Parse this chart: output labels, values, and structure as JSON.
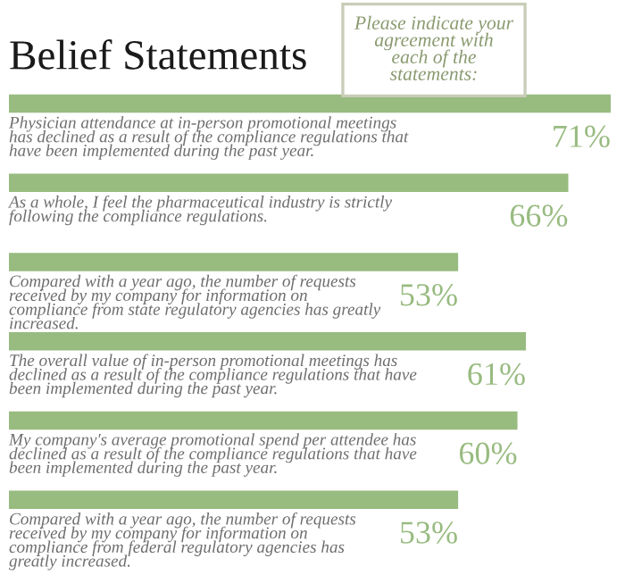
{
  "chart_data": {
    "type": "bar",
    "orientation": "horizontal",
    "title": "Belief Statements",
    "subtitle": "Please indicate your agreement with each of the statements:",
    "categories": [
      "Physician attendance at in-person promotional meetings has declined as a result of the compliance regulations that have been implemented during the past year.",
      "As a whole, I feel the pharmaceutical industry is strictly following the compliance regulations.",
      "Compared with a year ago, the number of requests received by my company for information on compliance from state regulatory agencies has greatly increased.",
      "The overall value of in-person promotional meetings has declined as a result of the compliance regulations that have been implemented during the past year.",
      "My company's average promotional spend per attendee has declined as a result of the compliance regulations that have been implemented during the past year.",
      "Compared with a year ago, the number of requests received by my company for information on compliance from federal regulatory agencies has greatly increased."
    ],
    "values": [
      71,
      66,
      53,
      61,
      60,
      53
    ],
    "value_labels": [
      "71%",
      "66%",
      "53%",
      "61%",
      "60%",
      "53%"
    ],
    "color": "#98bb80"
  }
}
